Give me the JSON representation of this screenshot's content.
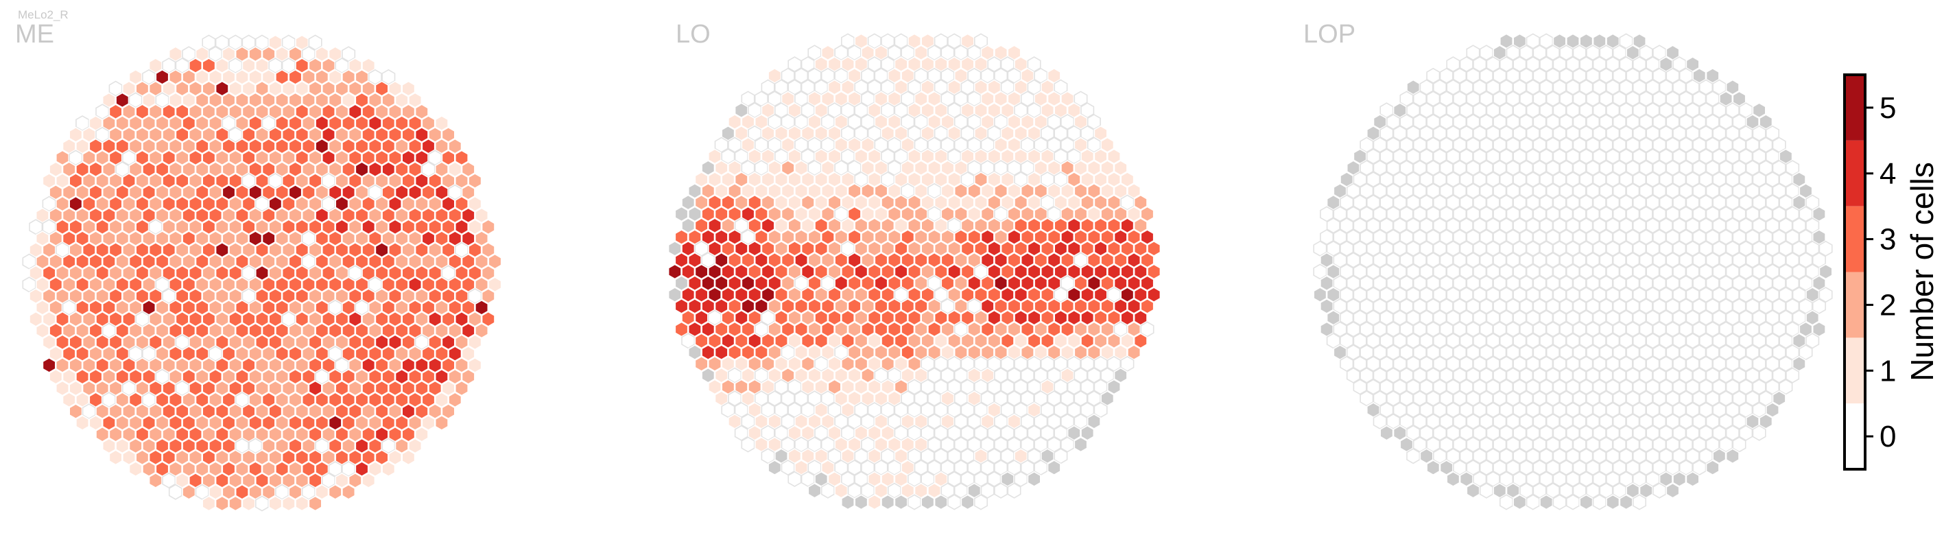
{
  "chart_data": {
    "type": "heatmap",
    "cell_type": "MeLo2_R",
    "panels": [
      {
        "title": "ME",
        "pattern": "me"
      },
      {
        "title": "LO",
        "pattern": "lo"
      },
      {
        "title": "LOP",
        "pattern": "lop"
      }
    ],
    "colorbar": {
      "label": "Number of cells",
      "ticks": [
        0,
        1,
        2,
        3,
        4,
        5
      ],
      "range": [
        -0.5,
        5.5
      ],
      "colors": [
        "#ffffff",
        "#fee5d9",
        "#fcae91",
        "#fb6a4a",
        "#de2d26",
        "#a50f15"
      ]
    },
    "grid": {
      "empty_fill": "#ffffff",
      "empty_stroke": "#e2e2e2",
      "edge_fill": "#cccccc",
      "cell_stroke": "#ffffff"
    }
  }
}
